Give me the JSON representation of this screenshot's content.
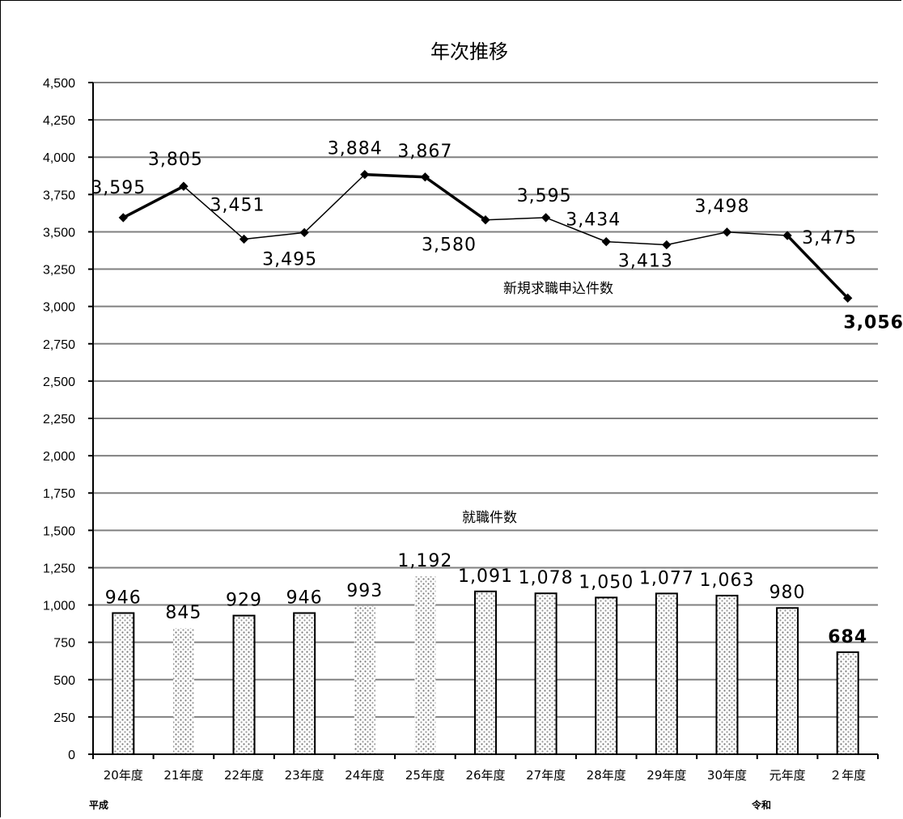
{
  "chart_data": {
    "type": "bar",
    "title": "年次推移",
    "categories": [
      "20年度",
      "21年度",
      "22年度",
      "23年度",
      "24年度",
      "25年度",
      "26年度",
      "27年度",
      "28年度",
      "29年度",
      "30年度",
      "元年度",
      "２年度"
    ],
    "era_labels": [
      "平成",
      "令和"
    ],
    "ylim": [
      0,
      4500
    ],
    "yticks": [
      "0",
      "250",
      "500",
      "750",
      "1,000",
      "1,250",
      "1,500",
      "1,750",
      "2,000",
      "2,250",
      "2,500",
      "2,750",
      "3,000",
      "3,250",
      "3,500",
      "3,750",
      "4,000",
      "4,250",
      "4,500"
    ],
    "grid": true,
    "series": [
      {
        "name": "新規求職申込件数",
        "type": "line",
        "values": [
          3595,
          3805,
          3451,
          3495,
          3884,
          3867,
          3580,
          3595,
          3434,
          3413,
          3498,
          3475,
          3056
        ],
        "labels": [
          "3,595",
          "3,805",
          "3,451",
          "3,495",
          "3,884",
          "3,867",
          "3,580",
          "3,595",
          "3,434",
          "3,413",
          "3,498",
          "3,475",
          "3,056"
        ]
      },
      {
        "name": "就職件数",
        "type": "bar",
        "values": [
          946,
          845,
          929,
          946,
          993,
          1192,
          1091,
          1078,
          1050,
          1077,
          1063,
          980,
          684
        ],
        "labels": [
          "946",
          "845",
          "929",
          "946",
          "993",
          "1,192",
          "1,091",
          "1,078",
          "1,050",
          "1,077",
          "1,063",
          "980",
          "684"
        ]
      }
    ]
  }
}
